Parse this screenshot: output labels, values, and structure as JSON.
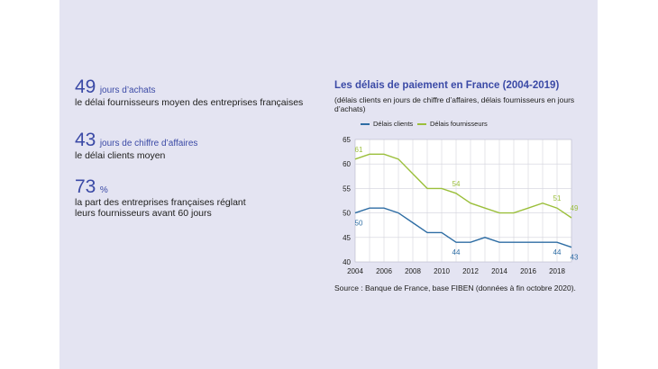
{
  "stats": [
    {
      "value": "49",
      "unit": "jours d’achats",
      "desc": [
        "le délai fournisseurs moyen des entreprises françaises"
      ]
    },
    {
      "value": "43",
      "unit": "jours de chiffre d’affaires",
      "desc": [
        "le délai clients moyen"
      ]
    },
    {
      "value": "73",
      "unit": "%",
      "desc": [
        "la part des entreprises françaises réglant",
        "leurs fournisseurs avant 60 jours"
      ]
    }
  ],
  "source": "Source : Banque de France, base FIBEN (données à fin octobre 2020).",
  "colors": {
    "panel": "#e4e4f2",
    "accent": "#3b4aa6",
    "clients": "#2e6da4",
    "fournisseurs": "#9bbf3b"
  },
  "chart_data": {
    "type": "line",
    "title": "Les délais de paiement en France (2004-2019)",
    "subtitle": "(délais clients en jours de chiffre d’affaires, délais fournisseurs en jours d’achats)",
    "x": [
      2004,
      2005,
      2006,
      2007,
      2008,
      2009,
      2010,
      2011,
      2012,
      2013,
      2014,
      2015,
      2016,
      2017,
      2018,
      2019
    ],
    "series": [
      {
        "name": "Délais clients",
        "color": "#2e6da4",
        "values": [
          50,
          51,
          51,
          50,
          48,
          46,
          46,
          44,
          44,
          45,
          44,
          44,
          44,
          44,
          44,
          43
        ]
      },
      {
        "name": "Délais fournisseurs",
        "color": "#9bbf3b",
        "values": [
          61,
          62,
          62,
          61,
          58,
          55,
          55,
          54,
          52,
          51,
          50,
          50,
          51,
          52,
          51,
          49
        ]
      }
    ],
    "data_labels": [
      {
        "series": 1,
        "x": 2004,
        "text": "61"
      },
      {
        "series": 0,
        "x": 2004,
        "text": "50"
      },
      {
        "series": 1,
        "x": 2011,
        "text": "54"
      },
      {
        "series": 0,
        "x": 2011,
        "text": "44"
      },
      {
        "series": 1,
        "x": 2018,
        "text": "51"
      },
      {
        "series": 1,
        "x": 2019,
        "text": "49"
      },
      {
        "series": 0,
        "x": 2018,
        "text": "44"
      },
      {
        "series": 0,
        "x": 2019,
        "text": "43"
      }
    ],
    "xticks": [
      2004,
      2006,
      2008,
      2010,
      2012,
      2014,
      2016,
      2018
    ],
    "yticks": [
      40,
      45,
      50,
      55,
      60,
      65
    ],
    "ylim": [
      40,
      65
    ],
    "xlim": [
      2004,
      2019
    ],
    "grid": true,
    "legend_position": "top-left"
  }
}
